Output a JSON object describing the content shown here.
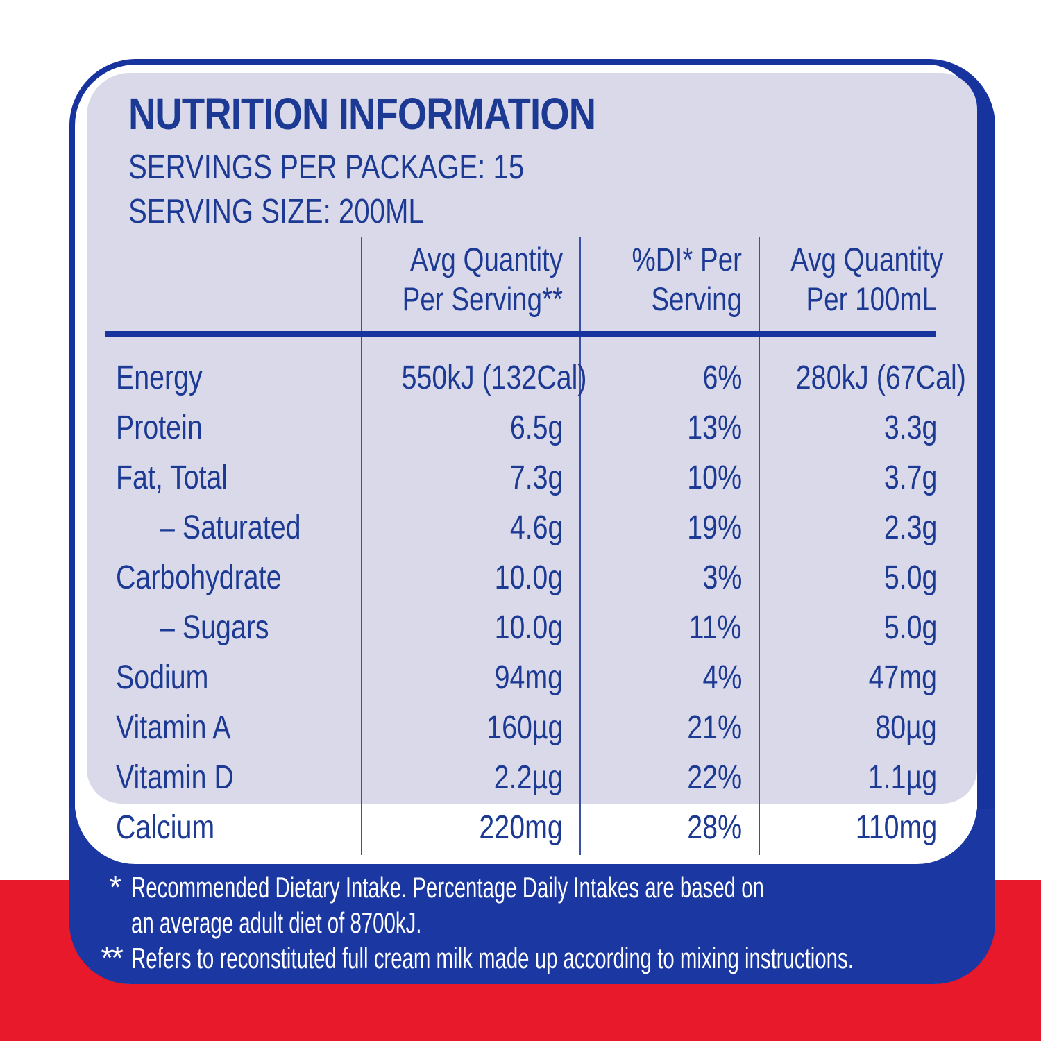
{
  "panel": {
    "title": "NUTRITION INFORMATION",
    "servings_per_package": "SERVINGS PER PACKAGE: 15",
    "serving_size": "SERVING SIZE: 200ML"
  },
  "table": {
    "columns": [
      {
        "line1": "Avg Quantity",
        "line2": "Per Serving**"
      },
      {
        "line1": "%DI* Per",
        "line2": "Serving"
      },
      {
        "line1": "Avg Quantity",
        "line2": "Per 100mL"
      }
    ],
    "rows": [
      {
        "label": "Energy",
        "per_serving": "550kJ (132Cal)",
        "di_percent": "6%",
        "per_100ml": "280kJ (67Cal)"
      },
      {
        "label": "Protein",
        "per_serving": "6.5g",
        "di_percent": "13%",
        "per_100ml": "3.3g"
      },
      {
        "label": "Fat, Total",
        "per_serving": "7.3g",
        "di_percent": "10%",
        "per_100ml": "3.7g"
      },
      {
        "label": "– Saturated",
        "per_serving": "4.6g",
        "di_percent": "19%",
        "per_100ml": "2.3g"
      },
      {
        "label": "Carbohydrate",
        "per_serving": "10.0g",
        "di_percent": "3%",
        "per_100ml": "5.0g"
      },
      {
        "label": "– Sugars",
        "per_serving": "10.0g",
        "di_percent": "11%",
        "per_100ml": "5.0g"
      },
      {
        "label": "Sodium",
        "per_serving": "94mg",
        "di_percent": "4%",
        "per_100ml": "47mg"
      },
      {
        "label": "Vitamin A",
        "per_serving": "160µg",
        "di_percent": "21%",
        "per_100ml": "80µg"
      },
      {
        "label": "Vitamin D",
        "per_serving": "2.2µg",
        "di_percent": "22%",
        "per_100ml": "1.1µg"
      },
      {
        "label": "Calcium",
        "per_serving": "220mg",
        "di_percent": "28%",
        "per_100ml": "110mg"
      }
    ]
  },
  "footnotes": [
    {
      "marker": "*",
      "lines": [
        "Recommended Dietary Intake. Percentage Daily Intakes are based on",
        "an average adult diet of 8700kJ."
      ]
    },
    {
      "marker": "**",
      "lines": [
        "Refers to reconstituted full cream milk made up according to mixing instructions."
      ]
    }
  ],
  "colors": {
    "navy_border": "#16339e",
    "navy_footer": "#1b38a2",
    "navy_text": "#1c3a94",
    "lavender": "#d9d9ea",
    "red": "#e8192b",
    "footnote_text": "#ffffff"
  }
}
